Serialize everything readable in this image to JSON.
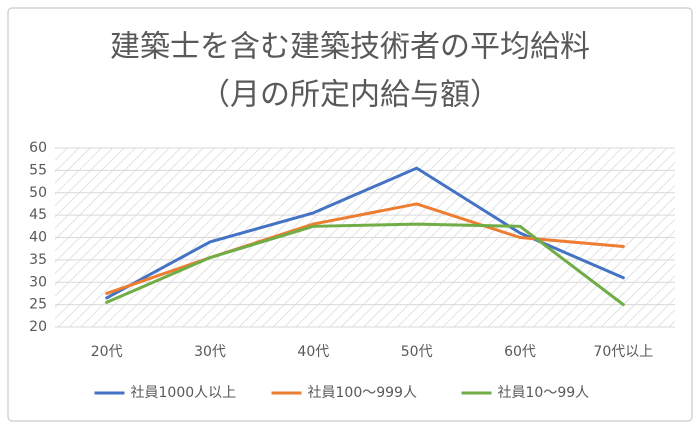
{
  "chart_data": {
    "type": "line",
    "title": "建築士を含む建築技術者の平均給料",
    "subtitle": "（月の所定内給与額）",
    "categories": [
      "20代",
      "30代",
      "40代",
      "50代",
      "60代",
      "70代以上"
    ],
    "series": [
      {
        "name": "社員1000人以上",
        "color": "#4472c4",
        "values": [
          26.5,
          39,
          45.5,
          55.5,
          41,
          31
        ]
      },
      {
        "name": "社員100～999人",
        "color": "#ed7d31",
        "values": [
          27.5,
          35.5,
          43,
          47.5,
          40,
          38
        ]
      },
      {
        "name": "社員10～99人",
        "color": "#70ad47",
        "values": [
          25.5,
          35.5,
          42.5,
          43,
          42.5,
          25
        ]
      }
    ],
    "ylim": [
      20,
      60
    ],
    "yticks": [
      20,
      25,
      30,
      35,
      40,
      45,
      50,
      55,
      60
    ],
    "grid": true,
    "legend": "bottom"
  }
}
